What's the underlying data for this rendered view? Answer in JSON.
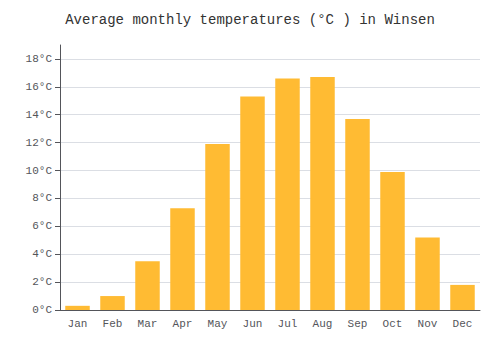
{
  "chart_data": {
    "type": "bar",
    "title": "Average monthly temperatures (°C ) in Winsen",
    "categories": [
      "Jan",
      "Feb",
      "Mar",
      "Apr",
      "May",
      "Jun",
      "Jul",
      "Aug",
      "Sep",
      "Oct",
      "Nov",
      "Dec"
    ],
    "values": [
      0.3,
      1.0,
      3.5,
      7.3,
      11.9,
      15.3,
      16.6,
      16.7,
      13.7,
      9.9,
      5.2,
      1.8
    ],
    "color": "#FFBB33",
    "ylim": [
      0,
      19
    ],
    "yticks": [
      {
        "value": 0,
        "label": "0°C"
      },
      {
        "value": 2,
        "label": "2°C"
      },
      {
        "value": 4,
        "label": "4°C"
      },
      {
        "value": 6,
        "label": "6°C"
      },
      {
        "value": 8,
        "label": "8°C"
      },
      {
        "value": 10,
        "label": "10°C"
      },
      {
        "value": 12,
        "label": "12°C"
      },
      {
        "value": 14,
        "label": "14°C"
      },
      {
        "value": 16,
        "label": "16°C"
      },
      {
        "value": 18,
        "label": "18°C"
      }
    ],
    "grid": true
  }
}
